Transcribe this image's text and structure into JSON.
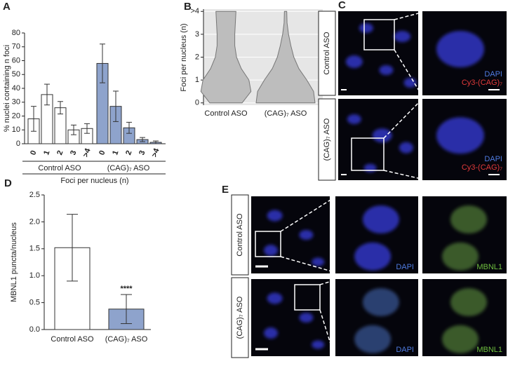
{
  "chart_data": [
    {
      "panel": "A",
      "type": "bar",
      "ylabel": "% nuclei containing n foci",
      "xlabel": "Foci per nucleus (n)",
      "categories": [
        "0",
        "1",
        "2",
        "3",
        ">4"
      ],
      "series": [
        {
          "name": "Control ASO",
          "color": "#ffffff",
          "values": [
            18,
            35.5,
            26,
            10,
            11
          ],
          "errors": [
            9,
            7.5,
            4.5,
            3.5,
            3.5
          ]
        },
        {
          "name": "(CAG)₇ ASO",
          "color": "#8ea3cc",
          "values": [
            58,
            27,
            11.5,
            3,
            1
          ],
          "errors": [
            14,
            11,
            4,
            1.5,
            1
          ]
        }
      ],
      "ylim": [
        0,
        80
      ],
      "yticks": [
        0,
        10,
        20,
        30,
        40,
        50,
        60,
        70,
        80
      ]
    },
    {
      "panel": "B",
      "type": "violin",
      "ylabel": "Foci per nucleus (n)",
      "categories": [
        "Control ASO",
        "(CAG)₇ ASO"
      ],
      "color": "#bdbdbd",
      "density_y": [
        0,
        0.5,
        1,
        1.5,
        2,
        2.5,
        3,
        3.5,
        4
      ],
      "density": [
        [
          0.55,
          0.85,
          0.78,
          0.52,
          0.36,
          0.3,
          0.3,
          0.32,
          0.34
        ],
        [
          1.0,
          0.95,
          0.72,
          0.45,
          0.28,
          0.18,
          0.1,
          0.05,
          0.04
        ]
      ],
      "ylim": [
        -0.1,
        4.1
      ],
      "yticks": [
        0,
        1,
        2,
        3,
        {
          "value": 4,
          "label": ">4"
        }
      ],
      "grid": true
    },
    {
      "panel": "D",
      "type": "bar",
      "ylabel": "MBNL1 puncta/nucleus",
      "annotation": "****",
      "categories": [
        "Control ASO",
        "(CAG)₇ ASO"
      ],
      "colors": [
        "#ffffff",
        "#8ea3cc"
      ],
      "values": [
        1.52,
        0.38
      ],
      "errors": [
        0.62,
        0.27
      ],
      "ylim": [
        0,
        2.5
      ],
      "yticks": [
        {
          "value": 0,
          "label": "0.0"
        },
        {
          "value": 0.5,
          "label": "0.5"
        },
        {
          "value": 1,
          "label": "1.0"
        },
        {
          "value": 1.5,
          "label": "1.5"
        },
        {
          "value": 2,
          "label": "2.0"
        },
        {
          "value": 2.5,
          "label": "2.5"
        }
      ]
    }
  ],
  "image_panels": [
    {
      "panel": "C",
      "rows": [
        "Control ASO",
        "(CAG)₇ ASO"
      ],
      "stains": [
        "DAPI",
        "Cy3-(CAG)₇"
      ]
    },
    {
      "panel": "E",
      "rows": [
        "Control ASO",
        "(CAG)₇ ASO"
      ],
      "stains": [
        "DAPI",
        "MBNL1"
      ]
    }
  ]
}
